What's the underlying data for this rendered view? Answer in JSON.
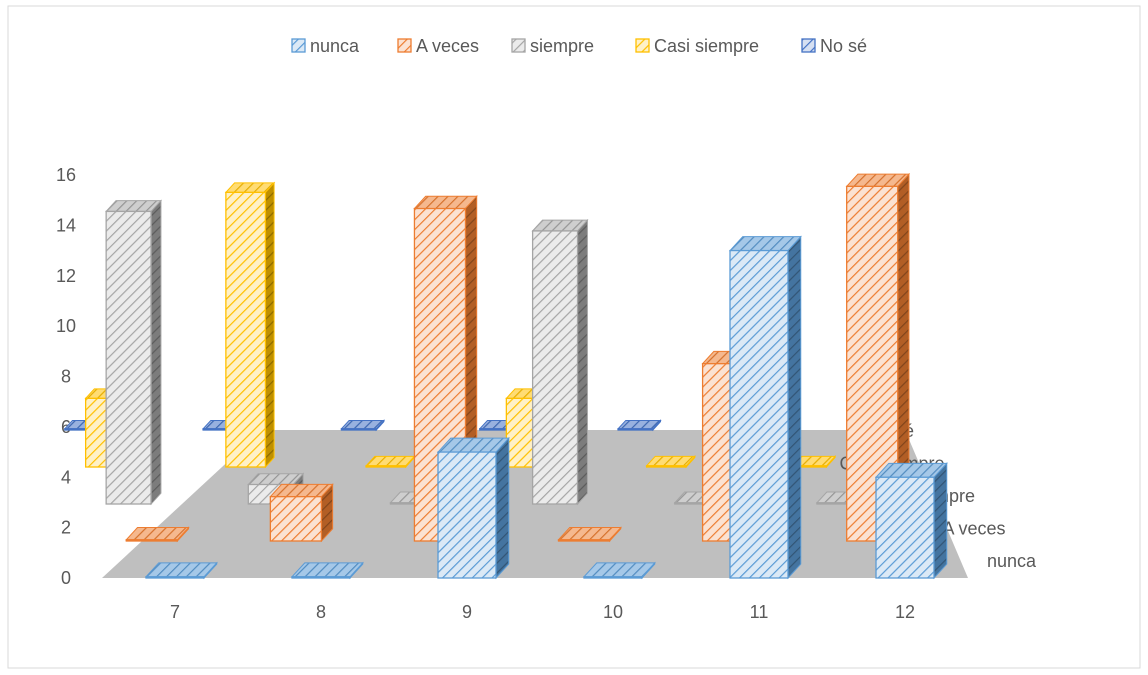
{
  "chart_data": {
    "type": "bar",
    "subtype": "3d-column",
    "categories": [
      "7",
      "8",
      "9",
      "10",
      "11",
      "12"
    ],
    "series": [
      {
        "name": "nunca",
        "color": "#5B9BD5",
        "values": [
          0,
          0,
          5,
          0,
          13,
          4
        ]
      },
      {
        "name": "A veces",
        "color": "#ED7D31",
        "values": [
          0,
          2,
          15,
          0,
          8,
          16
        ]
      },
      {
        "name": "siempre",
        "color": "#A5A5A5",
        "values": [
          15,
          1,
          0,
          14,
          0,
          0
        ]
      },
      {
        "name": "Casi siempre",
        "color": "#FFC000",
        "values": [
          4,
          16,
          0,
          4,
          0,
          0
        ]
      },
      {
        "name": "No sé",
        "color": "#4472C4",
        "values": [
          0,
          0,
          0,
          0,
          0,
          0
        ]
      }
    ],
    "yticks": [
      "0",
      "2",
      "4",
      "6",
      "8",
      "10",
      "12",
      "14",
      "16"
    ],
    "ylim": [
      0,
      16
    ],
    "legend_position": "top",
    "grid": false,
    "fill_pattern": "diagonal-hatch",
    "floor_color": "#BFBFBF"
  }
}
